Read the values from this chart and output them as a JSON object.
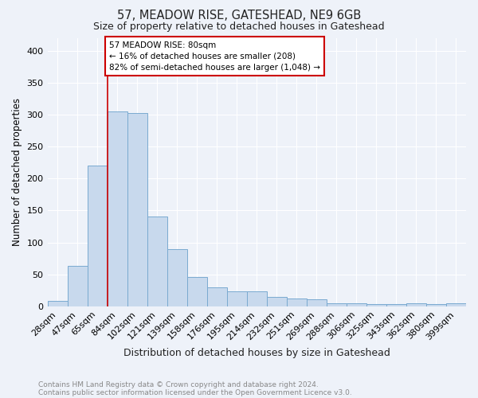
{
  "title": "57, MEADOW RISE, GATESHEAD, NE9 6GB",
  "subtitle": "Size of property relative to detached houses in Gateshead",
  "xlabel": "Distribution of detached houses by size in Gateshead",
  "ylabel": "Number of detached properties",
  "bar_color": "#c8d9ed",
  "bar_edge_color": "#7aaad0",
  "categories": [
    "28sqm",
    "47sqm",
    "65sqm",
    "84sqm",
    "102sqm",
    "121sqm",
    "139sqm",
    "158sqm",
    "176sqm",
    "195sqm",
    "214sqm",
    "232sqm",
    "251sqm",
    "269sqm",
    "288sqm",
    "306sqm",
    "325sqm",
    "343sqm",
    "362sqm",
    "380sqm",
    "399sqm"
  ],
  "values": [
    8,
    63,
    220,
    305,
    302,
    140,
    90,
    46,
    30,
    23,
    23,
    15,
    12,
    11,
    5,
    5,
    4,
    4,
    5,
    4,
    5
  ],
  "ylim": [
    0,
    420
  ],
  "yticks": [
    0,
    50,
    100,
    150,
    200,
    250,
    300,
    350,
    400
  ],
  "red_line_x": 3,
  "annotation_text": "57 MEADOW RISE: 80sqm\n← 16% of detached houses are smaller (208)\n82% of semi-detached houses are larger (1,048) →",
  "footer_line1": "Contains HM Land Registry data © Crown copyright and database right 2024.",
  "footer_line2": "Contains public sector information licensed under the Open Government Licence v3.0.",
  "background_color": "#eef2f9",
  "grid_color": "#ffffff",
  "annotation_box_color": "#ffffff",
  "annotation_box_edge": "#cc0000",
  "red_line_color": "#cc0000",
  "title_fontsize": 10.5,
  "subtitle_fontsize": 9,
  "ylabel_fontsize": 8.5,
  "xlabel_fontsize": 9,
  "tick_fontsize": 8,
  "annotation_fontsize": 7.5,
  "footer_fontsize": 6.5
}
